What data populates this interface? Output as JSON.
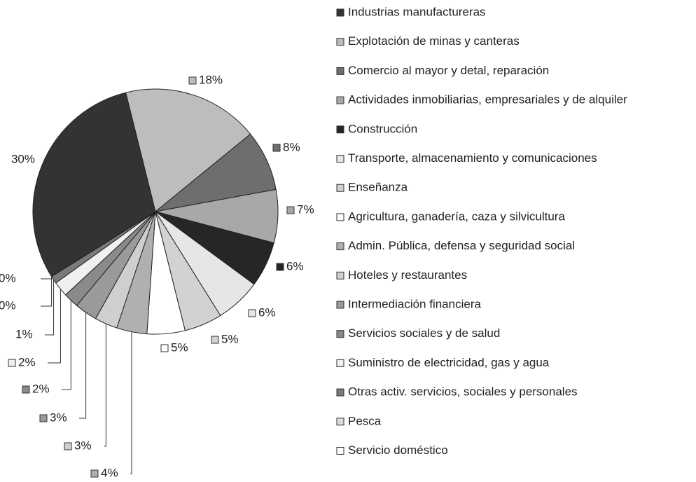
{
  "chart_data": {
    "type": "pie",
    "categories": [
      "Industrias manufactureras",
      "Explotación de minas y canteras",
      "Comercio al mayor y detal, reparación",
      "Actividades inmobiliarias, empresariales y de alquiler",
      "Construcción",
      "Transporte, almacenamiento y comunicaciones",
      "Enseñanza",
      "Agricultura, ganadería, caza y silvicultura",
      "Admin. Pública, defensa y seguridad social",
      "Hoteles y restaurantes",
      "Intermediación financiera",
      "Servicios sociales y de salud",
      "Suministro de electricidad, gas y agua",
      "Otras activ. servicios, sociales y personales",
      "Pesca",
      "Servicio doméstico"
    ],
    "values": [
      30,
      18,
      8,
      7,
      6,
      6,
      5,
      5,
      4,
      3,
      3,
      2,
      2,
      1,
      0,
      0
    ],
    "value_labels": [
      "30%",
      "18%",
      "8%",
      "7%",
      "6%",
      "6%",
      "5%",
      "5%",
      "4%",
      "3%",
      "3%",
      "2%",
      "2%",
      "1%",
      "0%",
      "0%"
    ],
    "colors": [
      "#333333",
      "#bdbdbd",
      "#6e6e6e",
      "#a8a8a8",
      "#262626",
      "#e6e6e6",
      "#d2d2d2",
      "#ffffff",
      "#b0b0b0",
      "#cfcfcf",
      "#9a9a9a",
      "#8a8a8a",
      "#f0f0f0",
      "#7a7a7a",
      "#dcdcdc",
      "#ffffff"
    ],
    "legend": "right"
  }
}
